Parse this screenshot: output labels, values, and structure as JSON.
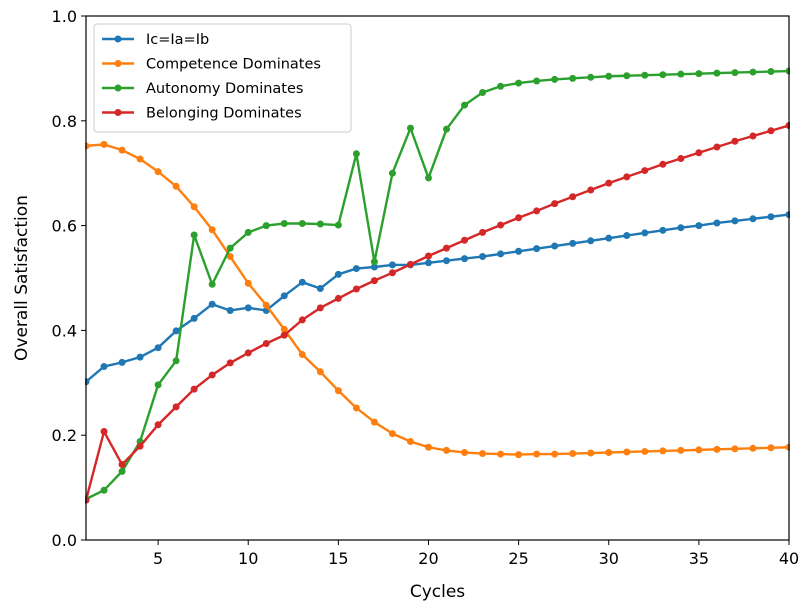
{
  "chart_data": {
    "type": "line",
    "title": "",
    "xlabel": "Cycles",
    "ylabel": "Overall Satisfaction",
    "xlim": [
      1,
      40
    ],
    "ylim": [
      0.0,
      1.0
    ],
    "xticks": [
      5,
      10,
      15,
      20,
      25,
      30,
      35,
      40
    ],
    "yticks": [
      0.0,
      0.2,
      0.4,
      0.6,
      0.8,
      1.0
    ],
    "xtick_labels": [
      "5",
      "10",
      "15",
      "20",
      "25",
      "30",
      "35",
      "40"
    ],
    "ytick_labels": [
      "0.0",
      "0.2",
      "0.4",
      "0.6",
      "0.8",
      "1.0"
    ],
    "grid": false,
    "legend_position": "top-left",
    "x": [
      1,
      2,
      3,
      4,
      5,
      6,
      7,
      8,
      9,
      10,
      11,
      12,
      13,
      14,
      15,
      16,
      17,
      18,
      19,
      20,
      21,
      22,
      23,
      24,
      25,
      26,
      27,
      28,
      29,
      30,
      31,
      32,
      33,
      34,
      35,
      36,
      37,
      38,
      39,
      40
    ],
    "series": [
      {
        "name": "Ic=Ia=Ib",
        "color": "#1f77b4",
        "values": [
          0.302,
          0.331,
          0.339,
          0.349,
          0.367,
          0.399,
          0.423,
          0.45,
          0.438,
          0.443,
          0.438,
          0.466,
          0.492,
          0.48,
          0.507,
          0.518,
          0.521,
          0.525,
          0.525,
          0.529,
          0.533,
          0.537,
          0.541,
          0.546,
          0.551,
          0.556,
          0.561,
          0.566,
          0.571,
          0.576,
          0.581,
          0.586,
          0.591,
          0.596,
          0.6,
          0.605,
          0.609,
          0.613,
          0.617,
          0.621
        ]
      },
      {
        "name": "Competence Dominates",
        "color": "#ff7f0e",
        "values": [
          0.752,
          0.755,
          0.744,
          0.727,
          0.703,
          0.675,
          0.636,
          0.592,
          0.541,
          0.49,
          0.448,
          0.402,
          0.354,
          0.321,
          0.285,
          0.252,
          0.225,
          0.203,
          0.188,
          0.177,
          0.171,
          0.167,
          0.165,
          0.164,
          0.163,
          0.164,
          0.164,
          0.165,
          0.166,
          0.167,
          0.168,
          0.169,
          0.17,
          0.171,
          0.172,
          0.173,
          0.174,
          0.175,
          0.176,
          0.177
        ]
      },
      {
        "name": "Autonomy Dominates",
        "color": "#2ca02c",
        "values": [
          0.078,
          0.095,
          0.131,
          0.188,
          0.296,
          0.342,
          0.582,
          0.488,
          0.557,
          0.587,
          0.6,
          0.604,
          0.604,
          0.603,
          0.601,
          0.737,
          0.531,
          0.7,
          0.786,
          0.691,
          0.784,
          0.83,
          0.854,
          0.866,
          0.872,
          0.876,
          0.879,
          0.881,
          0.883,
          0.885,
          0.886,
          0.887,
          0.888,
          0.889,
          0.89,
          0.891,
          0.892,
          0.893,
          0.894,
          0.895
        ]
      },
      {
        "name": "Belonging Dominates",
        "color": "#d62728",
        "values": [
          0.076,
          0.207,
          0.144,
          0.179,
          0.22,
          0.254,
          0.288,
          0.315,
          0.338,
          0.357,
          0.375,
          0.391,
          0.42,
          0.443,
          0.461,
          0.479,
          0.495,
          0.51,
          0.526,
          0.542,
          0.557,
          0.572,
          0.587,
          0.601,
          0.615,
          0.628,
          0.642,
          0.655,
          0.668,
          0.681,
          0.693,
          0.705,
          0.717,
          0.728,
          0.739,
          0.75,
          0.761,
          0.771,
          0.781,
          0.791
        ]
      }
    ]
  }
}
